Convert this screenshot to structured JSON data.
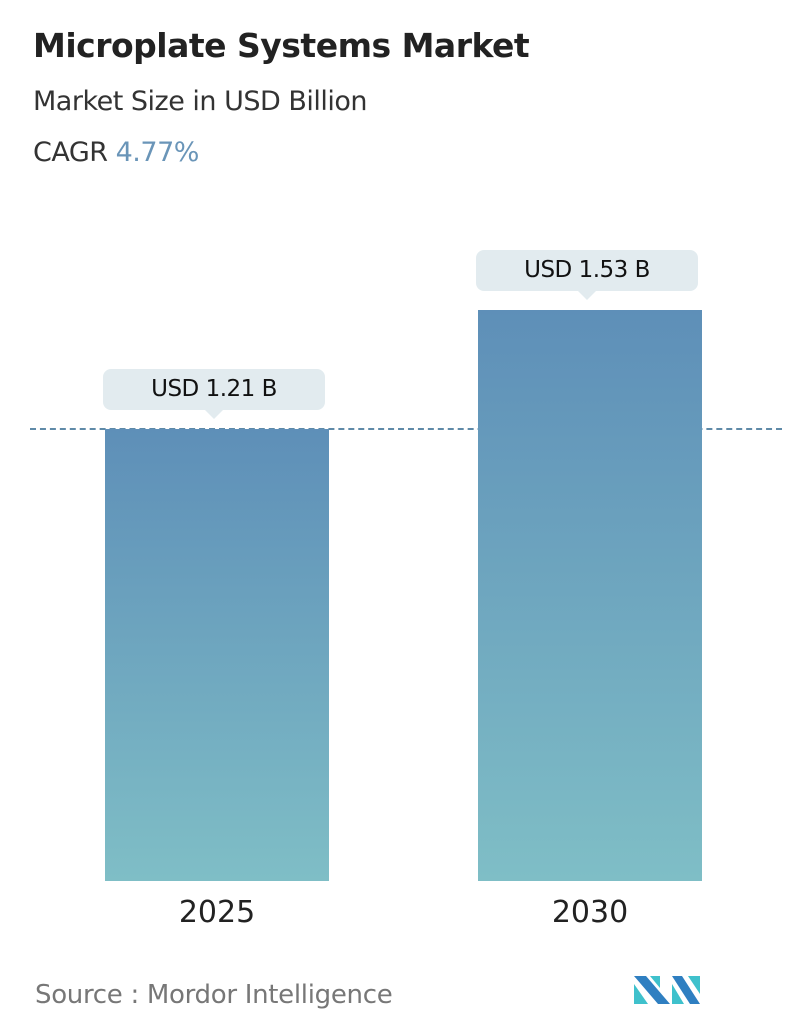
{
  "chart_data": {
    "type": "bar",
    "title": "Microplate Systems Market",
    "subtitle": "Market Size in USD Billion",
    "cagr_label": "CAGR",
    "cagr_value": "4.77%",
    "categories": [
      "2025",
      "2030"
    ],
    "values": [
      1.21,
      1.53
    ],
    "data_labels": [
      "USD 1.21 B",
      "USD 1.53 B"
    ],
    "ylim": [
      0,
      1.53
    ],
    "grid": false,
    "reference_line": 1.21,
    "colors": {
      "bar_top": "#5e8fb8",
      "bar_bottom": "#7fbec6",
      "cagr": "#6a95b8",
      "label_bg": "#e2ebef"
    }
  },
  "source": "Source :  Mordor Intelligence",
  "logo": "Mordor Intelligence logo"
}
